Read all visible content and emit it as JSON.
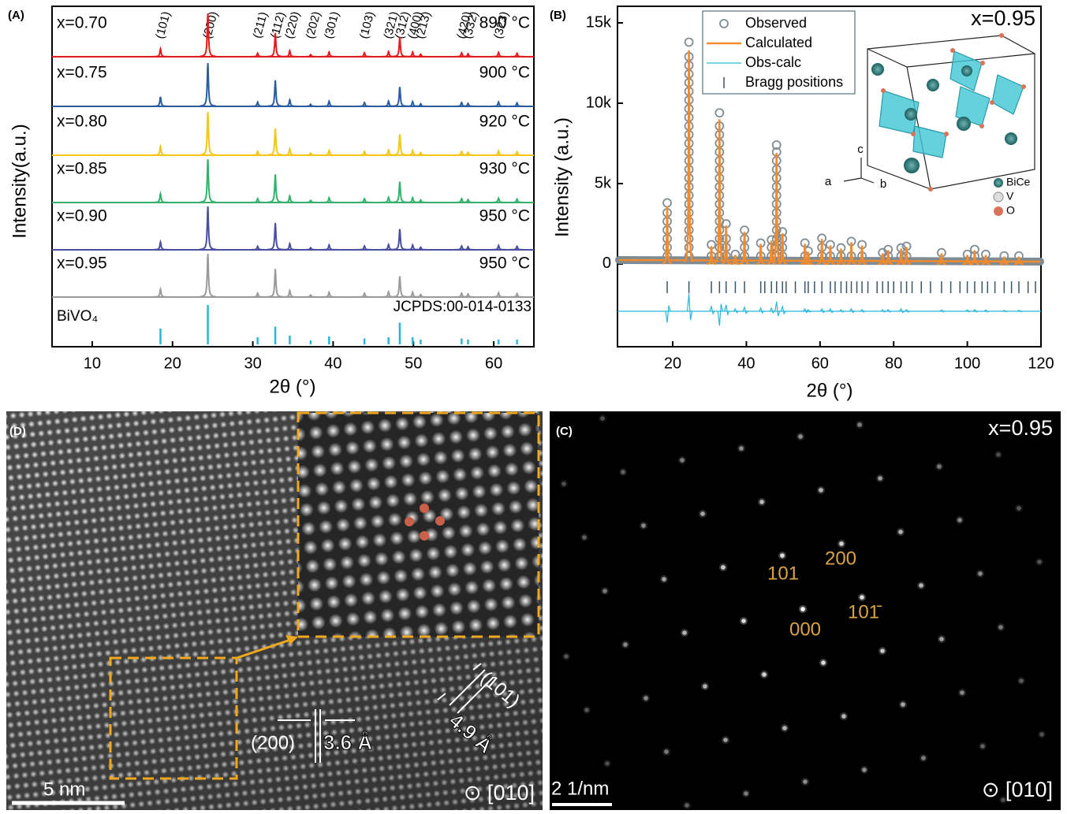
{
  "chart_data": [
    {
      "type": "xrd-stack",
      "panel_label": "(A)",
      "xlabel": "2θ (°)",
      "ylabel": "Intensity(a.u.)",
      "xlim": [
        5,
        65
      ],
      "xticks": [
        10,
        20,
        30,
        40,
        50,
        60
      ],
      "x": [
        18.5,
        24.4,
        30.6,
        32.8,
        34.6,
        37.2,
        39.5,
        43.9,
        46.9,
        48.3,
        49.9,
        50.9,
        56.0,
        56.8,
        60.6,
        62.9
      ],
      "peak_labels": [
        "(101)",
        "(200)",
        "(211)",
        "(112)",
        "(220)",
        "(202)",
        "(301)",
        "(103)",
        "(321)",
        "(312)",
        "(400)",
        "(213)",
        "(420)",
        "(332)",
        "(323)",
        null
      ],
      "series": [
        {
          "name": "x=0.70",
          "annotation": "890 °C",
          "color": "#e41a1c",
          "values": [
            18,
            100,
            8,
            55,
            14,
            5,
            11,
            9,
            12,
            45,
            11,
            6,
            9,
            7,
            10,
            8
          ]
        },
        {
          "name": "x=0.75",
          "annotation": "900 °C",
          "color": "#2a5d9f",
          "values": [
            22,
            100,
            10,
            60,
            15,
            5,
            12,
            9,
            12,
            45,
            11,
            6,
            9,
            7,
            10,
            8
          ]
        },
        {
          "name": "x=0.80",
          "annotation": "920 °C",
          "color": "#f5c518",
          "values": [
            20,
            100,
            9,
            62,
            15,
            5,
            11,
            9,
            12,
            48,
            11,
            6,
            9,
            7,
            10,
            8
          ]
        },
        {
          "name": "x=0.85",
          "annotation": "930 °C",
          "color": "#33b26b",
          "values": [
            20,
            100,
            9,
            65,
            15,
            5,
            11,
            9,
            12,
            48,
            11,
            6,
            9,
            7,
            10,
            8
          ]
        },
        {
          "name": "x=0.90",
          "annotation": "950 °C",
          "color": "#4b4fa0",
          "values": [
            18,
            100,
            8,
            62,
            14,
            5,
            11,
            9,
            12,
            48,
            11,
            6,
            9,
            7,
            10,
            8
          ]
        },
        {
          "name": "x=0.95",
          "annotation": "950 °C",
          "color": "#9a9a9a",
          "values": [
            18,
            100,
            9,
            65,
            15,
            5,
            11,
            9,
            12,
            48,
            11,
            6,
            9,
            7,
            10,
            8
          ]
        }
      ],
      "reference": {
        "name": "BiVO₄",
        "source": "JCPDS:00-014-0133",
        "color": "#29b6d9",
        "values": [
          40,
          100,
          18,
          45,
          22,
          10,
          20,
          15,
          18,
          55,
          18,
          12,
          15,
          12,
          12,
          12
        ]
      }
    },
    {
      "type": "rietveld",
      "panel_label": "(B)",
      "title": "x=0.95",
      "xlabel": "2θ (°)",
      "ylabel": "Intensity (a.u.)",
      "xlim": [
        5,
        120
      ],
      "xticks": [
        20,
        40,
        60,
        80,
        100,
        120
      ],
      "ylim": [
        -5150,
        16030
      ],
      "yticks": [
        0,
        {
          "value": 5000,
          "label": "5k"
        },
        {
          "value": 10000,
          "label": "10k"
        },
        {
          "value": 15000,
          "label": "15k"
        }
      ],
      "x": [
        18.5,
        24.4,
        30.5,
        32.7,
        34.5,
        37.0,
        39.5,
        43.9,
        46.8,
        48.2,
        49.8,
        55.9,
        56.8,
        60.5,
        62.8,
        65.7,
        68.5,
        71.4,
        77.0,
        78.5,
        82.0,
        83.5,
        93.0,
        100.0,
        102.0,
        105.0,
        110.0,
        114.0
      ],
      "series": [
        {
          "name": "Observed",
          "color": "#7f8c94",
          "values": [
            3800,
            13800,
            1200,
            9400,
            2500,
            600,
            2100,
            1300,
            1500,
            7400,
            2000,
            1300,
            800,
            1600,
            1200,
            1000,
            1400,
            1200,
            700,
            900,
            1000,
            1100,
            700,
            600,
            900,
            600,
            500,
            500
          ]
        },
        {
          "name": "Calculated",
          "color": "#f28a2e",
          "values": [
            3600,
            13300,
            1100,
            9000,
            2400,
            550,
            2000,
            1250,
            1450,
            6900,
            1900,
            1250,
            750,
            1550,
            1150,
            950,
            1350,
            1150,
            650,
            850,
            950,
            1050,
            650,
            550,
            850,
            550,
            450,
            450
          ]
        },
        {
          "name": "Obs-calc",
          "color": "#29b6d9",
          "values": [
            -700,
            1100,
            300,
            -900,
            400,
            150,
            250,
            200,
            200,
            600,
            300,
            150,
            100,
            150,
            150,
            100,
            150,
            100,
            100,
            100,
            150,
            100,
            80,
            80,
            100,
            80,
            60,
            60
          ]
        }
      ],
      "bragg": {
        "name": "Bragg positions",
        "color": "#3a5566",
        "x": [
          18.5,
          24.4,
          30.5,
          32.7,
          34.5,
          37.0,
          39.5,
          43.9,
          45.0,
          46.8,
          48.2,
          49.8,
          50.8,
          53.3,
          55.9,
          56.8,
          58.5,
          60.5,
          62.8,
          64.1,
          65.7,
          67.2,
          68.5,
          70.0,
          71.4,
          73.0,
          75.5,
          77.0,
          78.5,
          80.0,
          82.0,
          83.5,
          85.0,
          87.5,
          90.0,
          93.0,
          95.5,
          98.0,
          100.0,
          102.0,
          104.0,
          105.5,
          107.5,
          110.0,
          112.0,
          114.0,
          116.5,
          118.5
        ]
      },
      "legend": "upper-center",
      "inset_labels": [
        "c",
        "a",
        "b",
        "BiCe",
        "V",
        "O"
      ]
    }
  ],
  "images": [
    {
      "panel_label": "(D)",
      "scale_bar": "5 nm",
      "zone_axis": "⊙ [010]",
      "annotations": [
        "(200)",
        "3.6 Å",
        "(101)",
        "4.9 Å"
      ]
    },
    {
      "panel_label": "(C)",
      "title": "x=0.95",
      "scale_bar": "2 1/nm",
      "zone_axis": "⊙ [010]",
      "spot_labels": [
        "101",
        "200",
        "101̄",
        "000"
      ]
    }
  ]
}
